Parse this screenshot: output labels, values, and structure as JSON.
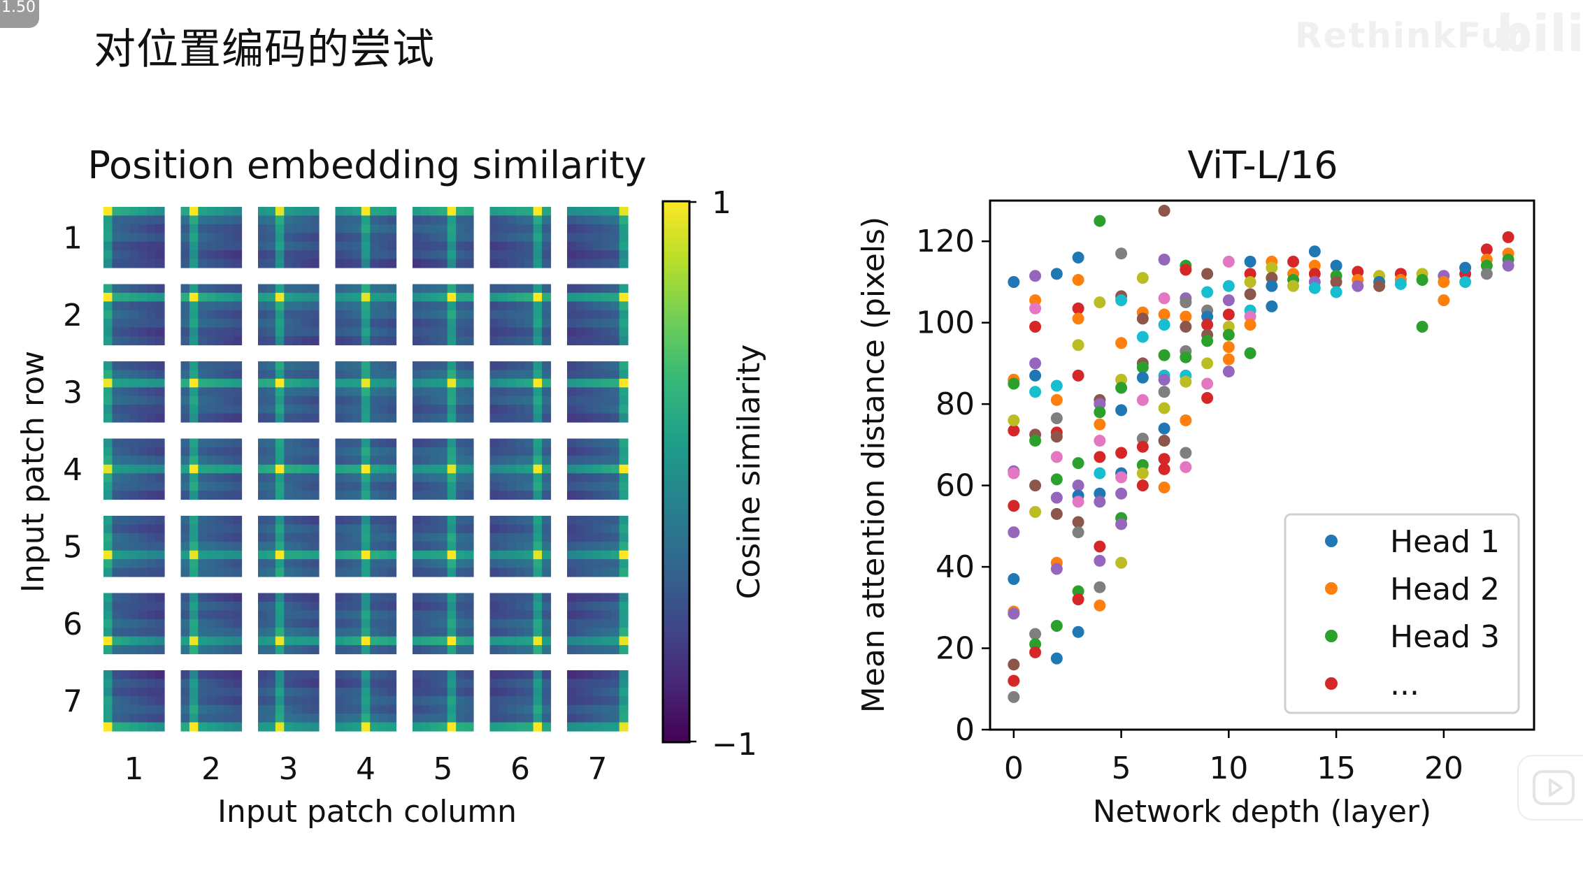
{
  "overlay": {
    "speed": "1.50",
    "watermark": "RethinkFun",
    "logo": "bilibili"
  },
  "slide_title": "对位置编码的尝试",
  "colors": {
    "viridis": [
      "#440154",
      "#482878",
      "#3e4989",
      "#31688e",
      "#26828e",
      "#1f9e89",
      "#35b779",
      "#6ece58",
      "#b5de2b",
      "#fde725"
    ],
    "tab10": [
      "#1f77b4",
      "#ff7f0e",
      "#2ca02c",
      "#d62728",
      "#9467bd",
      "#8c564b",
      "#e377c2",
      "#7f7f7f",
      "#bcbd22",
      "#17becf"
    ]
  },
  "chart_data": [
    {
      "type": "heatmap",
      "title": "Position embedding similarity",
      "xlabel": "Input patch column",
      "ylabel": "Input patch row",
      "x_ticks": [
        "1",
        "2",
        "3",
        "4",
        "5",
        "6",
        "7"
      ],
      "y_ticks": [
        "1",
        "2",
        "3",
        "4",
        "5",
        "6",
        "7"
      ],
      "grid_rows": 7,
      "grid_cols": 7,
      "cell_resolution": 7,
      "colorbar": {
        "label": "Cosine similarity",
        "range": [
          -1,
          1
        ],
        "ticks": [
          "1",
          "−1"
        ],
        "colormap": "viridis"
      }
    },
    {
      "type": "scatter",
      "title": "ViT-L/16",
      "xlabel": "Network depth (layer)",
      "ylabel": "Mean attention distance (pixels)",
      "xlim": [
        -1.1,
        24.2
      ],
      "ylim": [
        0,
        130
      ],
      "x_ticks": [
        "0",
        "5",
        "10",
        "15",
        "20"
      ],
      "y_ticks": [
        "0",
        "20",
        "40",
        "60",
        "80",
        "100",
        "120"
      ],
      "legend": {
        "position": "lower-right",
        "entries": [
          {
            "label": "Head 1",
            "color_index": 0
          },
          {
            "label": "Head 2",
            "color_index": 1
          },
          {
            "label": "Head 3",
            "color_index": 2
          },
          {
            "label": "...",
            "color_index": 3
          }
        ]
      },
      "points": [
        [
          0,
          110,
          0
        ],
        [
          0,
          86,
          1
        ],
        [
          0,
          85,
          2
        ],
        [
          0,
          73.5,
          3
        ],
        [
          0,
          76,
          8
        ],
        [
          0,
          63.5,
          4
        ],
        [
          0,
          63,
          6
        ],
        [
          0,
          55,
          3
        ],
        [
          0,
          48.5,
          4
        ],
        [
          0,
          37,
          0
        ],
        [
          0,
          29,
          1
        ],
        [
          0,
          28.5,
          4
        ],
        [
          0,
          16,
          5
        ],
        [
          0,
          12,
          3
        ],
        [
          0,
          8,
          7
        ],
        [
          1,
          111.5,
          4
        ],
        [
          1,
          105.5,
          1
        ],
        [
          1,
          103.5,
          6
        ],
        [
          1,
          99,
          3
        ],
        [
          1,
          90,
          4
        ],
        [
          1,
          87,
          0
        ],
        [
          1,
          83,
          9
        ],
        [
          1,
          72.5,
          5
        ],
        [
          1,
          71,
          2
        ],
        [
          1,
          60,
          5
        ],
        [
          1,
          53.5,
          8
        ],
        [
          1,
          23.5,
          7
        ],
        [
          1,
          21,
          2
        ],
        [
          1,
          19,
          3
        ],
        [
          2,
          112,
          0
        ],
        [
          2,
          84.5,
          9
        ],
        [
          2,
          81,
          1
        ],
        [
          2,
          76.5,
          7
        ],
        [
          2,
          73,
          3
        ],
        [
          2,
          72,
          5
        ],
        [
          2,
          67,
          6
        ],
        [
          2,
          61.5,
          2
        ],
        [
          2,
          57,
          4
        ],
        [
          2,
          53,
          5
        ],
        [
          2,
          41,
          1
        ],
        [
          2,
          39.5,
          4
        ],
        [
          2,
          25.5,
          2
        ],
        [
          2,
          17.5,
          0
        ],
        [
          3,
          116,
          0
        ],
        [
          3,
          110.5,
          1
        ],
        [
          3,
          103.5,
          3
        ],
        [
          3,
          101,
          1
        ],
        [
          3,
          94.5,
          8
        ],
        [
          3,
          87,
          3
        ],
        [
          3,
          65.5,
          2
        ],
        [
          3,
          60,
          4
        ],
        [
          3,
          57.5,
          0
        ],
        [
          3,
          56,
          6
        ],
        [
          3,
          51,
          5
        ],
        [
          3,
          48.5,
          7
        ],
        [
          3,
          34,
          2
        ],
        [
          3,
          32,
          3
        ],
        [
          3,
          24,
          0
        ],
        [
          4,
          125,
          2
        ],
        [
          4,
          105,
          8
        ],
        [
          4,
          81,
          5
        ],
        [
          4,
          80,
          4
        ],
        [
          4,
          78,
          2
        ],
        [
          4,
          75,
          1
        ],
        [
          4,
          71,
          6
        ],
        [
          4,
          67,
          3
        ],
        [
          4,
          63,
          9
        ],
        [
          4,
          58,
          0
        ],
        [
          4,
          56,
          4
        ],
        [
          4,
          45,
          3
        ],
        [
          4,
          41.5,
          4
        ],
        [
          4,
          35,
          7
        ],
        [
          4,
          30.5,
          1
        ],
        [
          5,
          117,
          7
        ],
        [
          5,
          106.5,
          5
        ],
        [
          5,
          105.5,
          9
        ],
        [
          5,
          95,
          1
        ],
        [
          5,
          86,
          8
        ],
        [
          5,
          84,
          2
        ],
        [
          5,
          78.5,
          0
        ],
        [
          5,
          68,
          3
        ],
        [
          5,
          63,
          0
        ],
        [
          5,
          62,
          6
        ],
        [
          5,
          58,
          4
        ],
        [
          5,
          52,
          2
        ],
        [
          5,
          50.5,
          4
        ],
        [
          5,
          41,
          8
        ],
        [
          6,
          111,
          8
        ],
        [
          6,
          102.5,
          1
        ],
        [
          6,
          101,
          5
        ],
        [
          6,
          96.5,
          9
        ],
        [
          6,
          90,
          5
        ],
        [
          6,
          89,
          2
        ],
        [
          6,
          86.5,
          0
        ],
        [
          6,
          81,
          6
        ],
        [
          6,
          71.5,
          7
        ],
        [
          6,
          69.5,
          3
        ],
        [
          6,
          65,
          2
        ],
        [
          6,
          63,
          8
        ],
        [
          6,
          60,
          3
        ],
        [
          7,
          127.5,
          5
        ],
        [
          7,
          115.5,
          4
        ],
        [
          7,
          106,
          6
        ],
        [
          7,
          102,
          1
        ],
        [
          7,
          99.5,
          9
        ],
        [
          7,
          92,
          2
        ],
        [
          7,
          87,
          9
        ],
        [
          7,
          86,
          4
        ],
        [
          7,
          83,
          7
        ],
        [
          7,
          79,
          8
        ],
        [
          7,
          74,
          0
        ],
        [
          7,
          71,
          5
        ],
        [
          7,
          66.5,
          3
        ],
        [
          7,
          64,
          3
        ],
        [
          7,
          59.5,
          1
        ],
        [
          8,
          114,
          2
        ],
        [
          8,
          113,
          3
        ],
        [
          8,
          106,
          4
        ],
        [
          8,
          105,
          7
        ],
        [
          8,
          101.5,
          1
        ],
        [
          8,
          99,
          5
        ],
        [
          8,
          93,
          7
        ],
        [
          8,
          91.5,
          2
        ],
        [
          8,
          87,
          9
        ],
        [
          8,
          85.5,
          8
        ],
        [
          8,
          76,
          1
        ],
        [
          8,
          68,
          7
        ],
        [
          8,
          64.5,
          6
        ],
        [
          9,
          112,
          5
        ],
        [
          9,
          107.5,
          9
        ],
        [
          9,
          103,
          7
        ],
        [
          9,
          101.5,
          0
        ],
        [
          9,
          99.5,
          3
        ],
        [
          9,
          97,
          5
        ],
        [
          9,
          95.5,
          2
        ],
        [
          9,
          90,
          8
        ],
        [
          9,
          85,
          6
        ],
        [
          9,
          81.5,
          3
        ],
        [
          10,
          115,
          6
        ],
        [
          10,
          109,
          9
        ],
        [
          10,
          105.5,
          4
        ],
        [
          10,
          102,
          3
        ],
        [
          10,
          99,
          8
        ],
        [
          10,
          97,
          2
        ],
        [
          10,
          94,
          1
        ],
        [
          10,
          91,
          1
        ],
        [
          10,
          88,
          4
        ],
        [
          11,
          115,
          0
        ],
        [
          11,
          112,
          3
        ],
        [
          11,
          110,
          8
        ],
        [
          11,
          107,
          5
        ],
        [
          11,
          103,
          9
        ],
        [
          11,
          101.5,
          6
        ],
        [
          11,
          99.5,
          1
        ],
        [
          11,
          92.5,
          2
        ],
        [
          12,
          115,
          1
        ],
        [
          12,
          113.5,
          8
        ],
        [
          12,
          111,
          5
        ],
        [
          12,
          109,
          0
        ],
        [
          13,
          115,
          3
        ],
        [
          13,
          112,
          1
        ],
        [
          13,
          110.5,
          2
        ],
        [
          13,
          109,
          8
        ],
        [
          12,
          104,
          0
        ],
        [
          14,
          117.5,
          0
        ],
        [
          14,
          114,
          1
        ],
        [
          14,
          112,
          3
        ],
        [
          14,
          110,
          4
        ],
        [
          14,
          108.5,
          9
        ],
        [
          15,
          114,
          0
        ],
        [
          15,
          111.5,
          2
        ],
        [
          15,
          110,
          5
        ],
        [
          15,
          107.5,
          9
        ],
        [
          16,
          112.5,
          3
        ],
        [
          16,
          110.5,
          1
        ],
        [
          16,
          109,
          4
        ],
        [
          17,
          111.5,
          8
        ],
        [
          17,
          110,
          0
        ],
        [
          17,
          109,
          5
        ],
        [
          18,
          112,
          3
        ],
        [
          18,
          110.5,
          1
        ],
        [
          18,
          109.5,
          9
        ],
        [
          19,
          112,
          8
        ],
        [
          19,
          110.5,
          2
        ],
        [
          19,
          99,
          2
        ],
        [
          20,
          111.5,
          4
        ],
        [
          20,
          110,
          1
        ],
        [
          20,
          105.5,
          1
        ],
        [
          21,
          112,
          3
        ],
        [
          21,
          110,
          9
        ],
        [
          21,
          113.5,
          0
        ],
        [
          22,
          118,
          3
        ],
        [
          22,
          115.5,
          1
        ],
        [
          22,
          114,
          2
        ],
        [
          22,
          112,
          7
        ],
        [
          23,
          121,
          3
        ],
        [
          23,
          117,
          1
        ],
        [
          23,
          115.5,
          2
        ],
        [
          23,
          114,
          4
        ]
      ]
    }
  ]
}
